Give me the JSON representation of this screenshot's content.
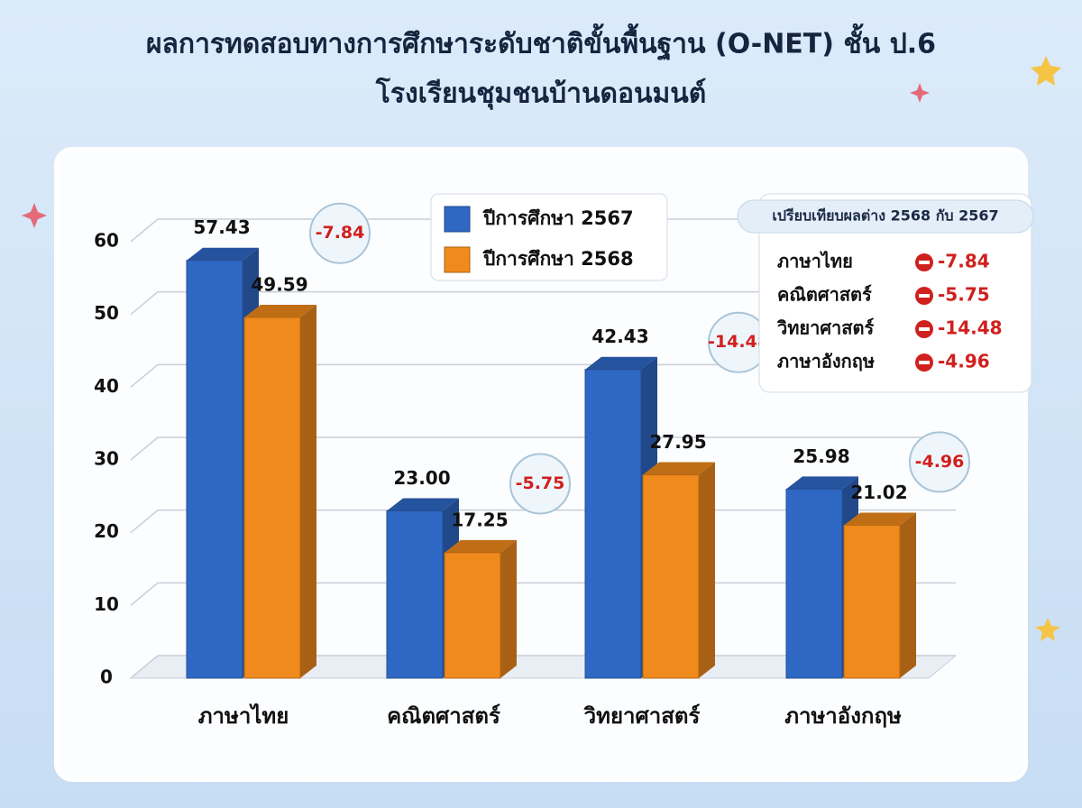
{
  "chart_data": {
    "type": "bar3d",
    "title": "ผลการทดสอบทางการศึกษาระดับชาติขั้นพื้นฐาน (O-NET) ชั้น ป.6",
    "subtitle": "โรงเรียนชุมชนบ้านดอนมนต์",
    "categories": [
      "ภาษาไทย",
      "คณิตศาสตร์",
      "วิทยาศาสตร์",
      "ภาษาอังกฤษ"
    ],
    "series": [
      {
        "name": "ปีการศึกษา 2567",
        "color": "#2f68c4",
        "values": [
          57.43,
          23.0,
          42.43,
          25.98
        ],
        "value_labels": [
          "57.43",
          "23.00",
          "42.43",
          "25.98"
        ]
      },
      {
        "name": "ปีการศึกษา 2568",
        "color": "#f08a1c",
        "values": [
          49.59,
          17.25,
          27.95,
          21.02
        ],
        "value_labels": [
          "49.59",
          "17.25",
          "27.95",
          "21.02"
        ]
      }
    ],
    "differences_title": "เปรียบเทียบผลต่าง 2568 กับ 2567",
    "differences": [
      -7.84,
      -5.75,
      -14.48,
      -4.96
    ],
    "ylim": [
      0,
      60
    ],
    "yticks": [
      0,
      10,
      20,
      30,
      40,
      50,
      60
    ],
    "grid": true
  }
}
